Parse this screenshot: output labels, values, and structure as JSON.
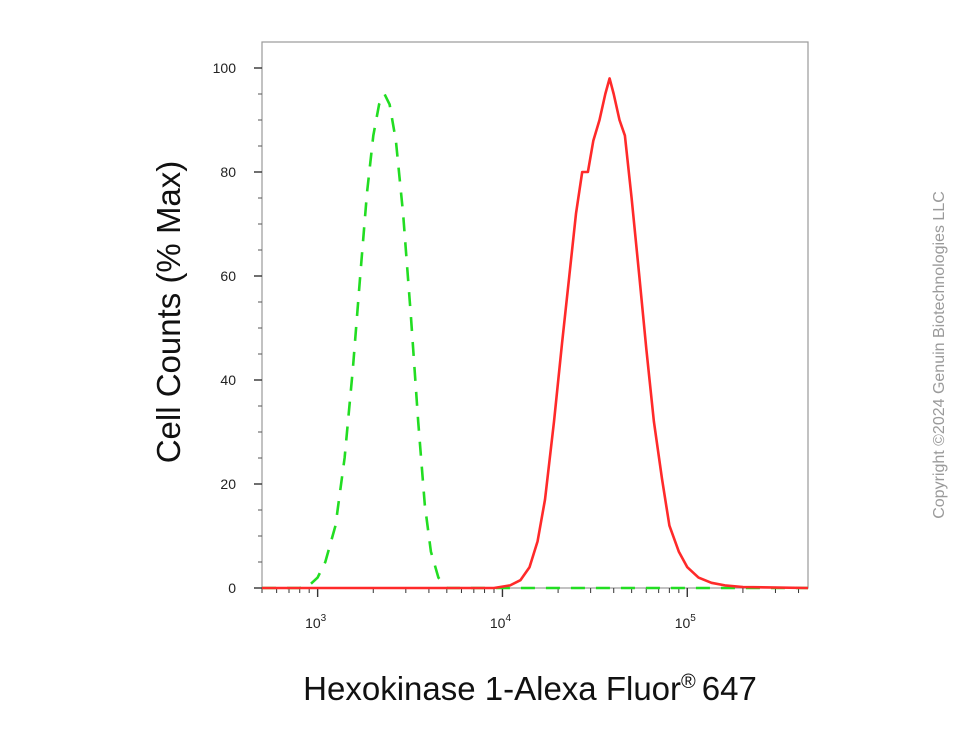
{
  "chart_data": {
    "type": "line",
    "title": "",
    "xlabel": "Hexokinase 1-Alexa Fluor",
    "xlabel_mark": "®",
    "xlabel_suffix": "647",
    "ylabel": "Cell Counts (% Max)",
    "x_scale": "log",
    "xlim": [
      500,
      450000
    ],
    "ylim": [
      0,
      105
    ],
    "grid": false,
    "legend": "none",
    "y_ticks": [
      0,
      20,
      40,
      60,
      80,
      100
    ],
    "x_ticks": [
      {
        "value": 1000,
        "base": "10",
        "exp": "3"
      },
      {
        "value": 10000,
        "base": "10",
        "exp": "4"
      },
      {
        "value": 100000,
        "base": "10",
        "exp": "5"
      }
    ],
    "series": [
      {
        "color": "#22dd22",
        "dash": true,
        "points": [
          [
            500,
            0
          ],
          [
            800,
            0
          ],
          [
            900,
            0.5
          ],
          [
            1000,
            2
          ],
          [
            1100,
            5
          ],
          [
            1250,
            12
          ],
          [
            1400,
            25
          ],
          [
            1550,
            42
          ],
          [
            1700,
            60
          ],
          [
            1850,
            76
          ],
          [
            2000,
            87
          ],
          [
            2150,
            93
          ],
          [
            2300,
            95
          ],
          [
            2450,
            93
          ],
          [
            2650,
            86
          ],
          [
            2900,
            72
          ],
          [
            3200,
            52
          ],
          [
            3500,
            32
          ],
          [
            3800,
            16
          ],
          [
            4100,
            7
          ],
          [
            4500,
            2
          ],
          [
            5000,
            0
          ],
          [
            450000,
            0
          ]
        ]
      },
      {
        "color": "#ff2a2a",
        "dash": false,
        "points": [
          [
            500,
            0
          ],
          [
            9000,
            0
          ],
          [
            11000,
            0.5
          ],
          [
            12500,
            1.5
          ],
          [
            14000,
            4
          ],
          [
            15500,
            9
          ],
          [
            17000,
            17
          ],
          [
            19000,
            32
          ],
          [
            21000,
            47
          ],
          [
            23000,
            60
          ],
          [
            25000,
            72
          ],
          [
            27000,
            80
          ],
          [
            29000,
            80
          ],
          [
            31000,
            86
          ],
          [
            33500,
            90
          ],
          [
            36000,
            95
          ],
          [
            38000,
            98
          ],
          [
            40000,
            95
          ],
          [
            43000,
            90
          ],
          [
            46000,
            87
          ],
          [
            50000,
            75
          ],
          [
            55000,
            60
          ],
          [
            60000,
            46
          ],
          [
            66000,
            32
          ],
          [
            73000,
            21
          ],
          [
            80000,
            12
          ],
          [
            90000,
            7
          ],
          [
            100000,
            4
          ],
          [
            115000,
            2
          ],
          [
            135000,
            1
          ],
          [
            160000,
            0.5
          ],
          [
            200000,
            0.2
          ],
          [
            450000,
            0
          ]
        ]
      }
    ]
  },
  "copyright": "Copyright ©2024 Genuin Biotechnologies LLC"
}
